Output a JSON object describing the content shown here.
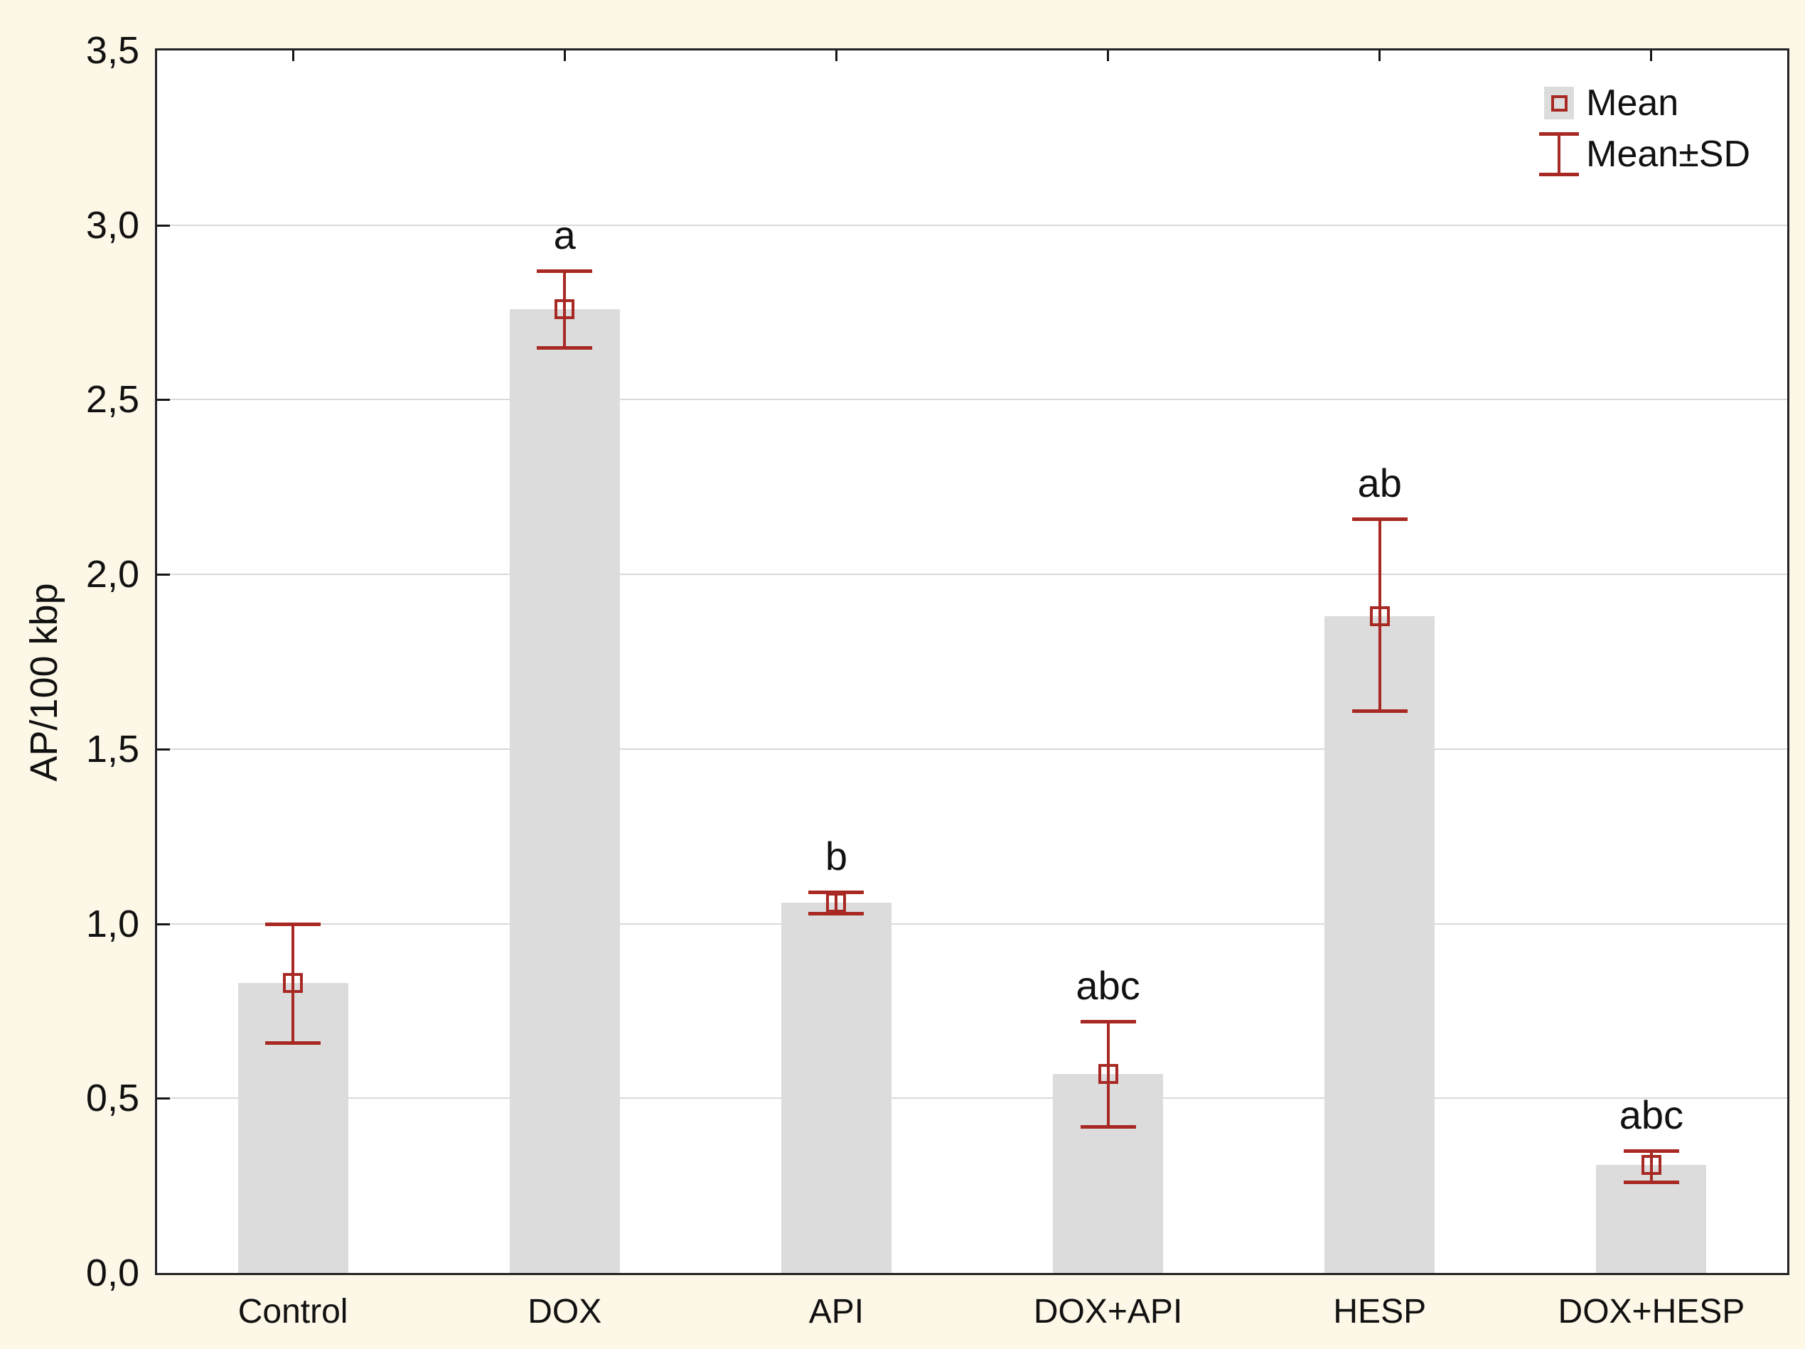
{
  "figure": {
    "background_color": "#fcf7e6",
    "plot_background": "#ffffff",
    "bar_color": "#dcdcdc",
    "error_color": "#a82923",
    "gridline_color": "#d9d9d9",
    "axis_color": "#222222"
  },
  "legend": {
    "items": [
      {
        "label": "Mean",
        "marker": "open-square-on-gray-patch"
      },
      {
        "label": "Mean±SD",
        "marker": "error-bar-ibeam"
      }
    ],
    "position": "top-right-inside"
  },
  "chart_data": {
    "type": "bar",
    "title": "",
    "xlabel": "",
    "ylabel": "AP/100 kbp",
    "categories": [
      "Control",
      "DOX",
      "API",
      "DOX+API",
      "HESP",
      "DOX+HESP"
    ],
    "series": [
      {
        "name": "Mean",
        "values": [
          0.83,
          2.76,
          1.06,
          0.57,
          1.88,
          0.31
        ]
      },
      {
        "name": "SD",
        "values": [
          0.17,
          0.11,
          0.03,
          0.15,
          0.28,
          0.04
        ]
      }
    ],
    "error_low": [
      0.66,
      2.65,
      1.03,
      0.42,
      1.61,
      0.26
    ],
    "error_high": [
      1.0,
      2.87,
      1.09,
      0.72,
      2.16,
      0.35
    ],
    "sig_letters": [
      "",
      "a",
      "b",
      "abc",
      "ab",
      "abc"
    ],
    "ylim": [
      0.0,
      3.5
    ],
    "yticks": {
      "values": [
        0.0,
        0.5,
        1.0,
        1.5,
        2.0,
        2.5,
        3.0,
        3.5
      ],
      "labels": [
        "0,0",
        "0,5",
        "1,0",
        "1,5",
        "2,0",
        "2,5",
        "3,0",
        "3,5"
      ]
    },
    "grid": "horizontal",
    "legend_position": "top-right"
  }
}
